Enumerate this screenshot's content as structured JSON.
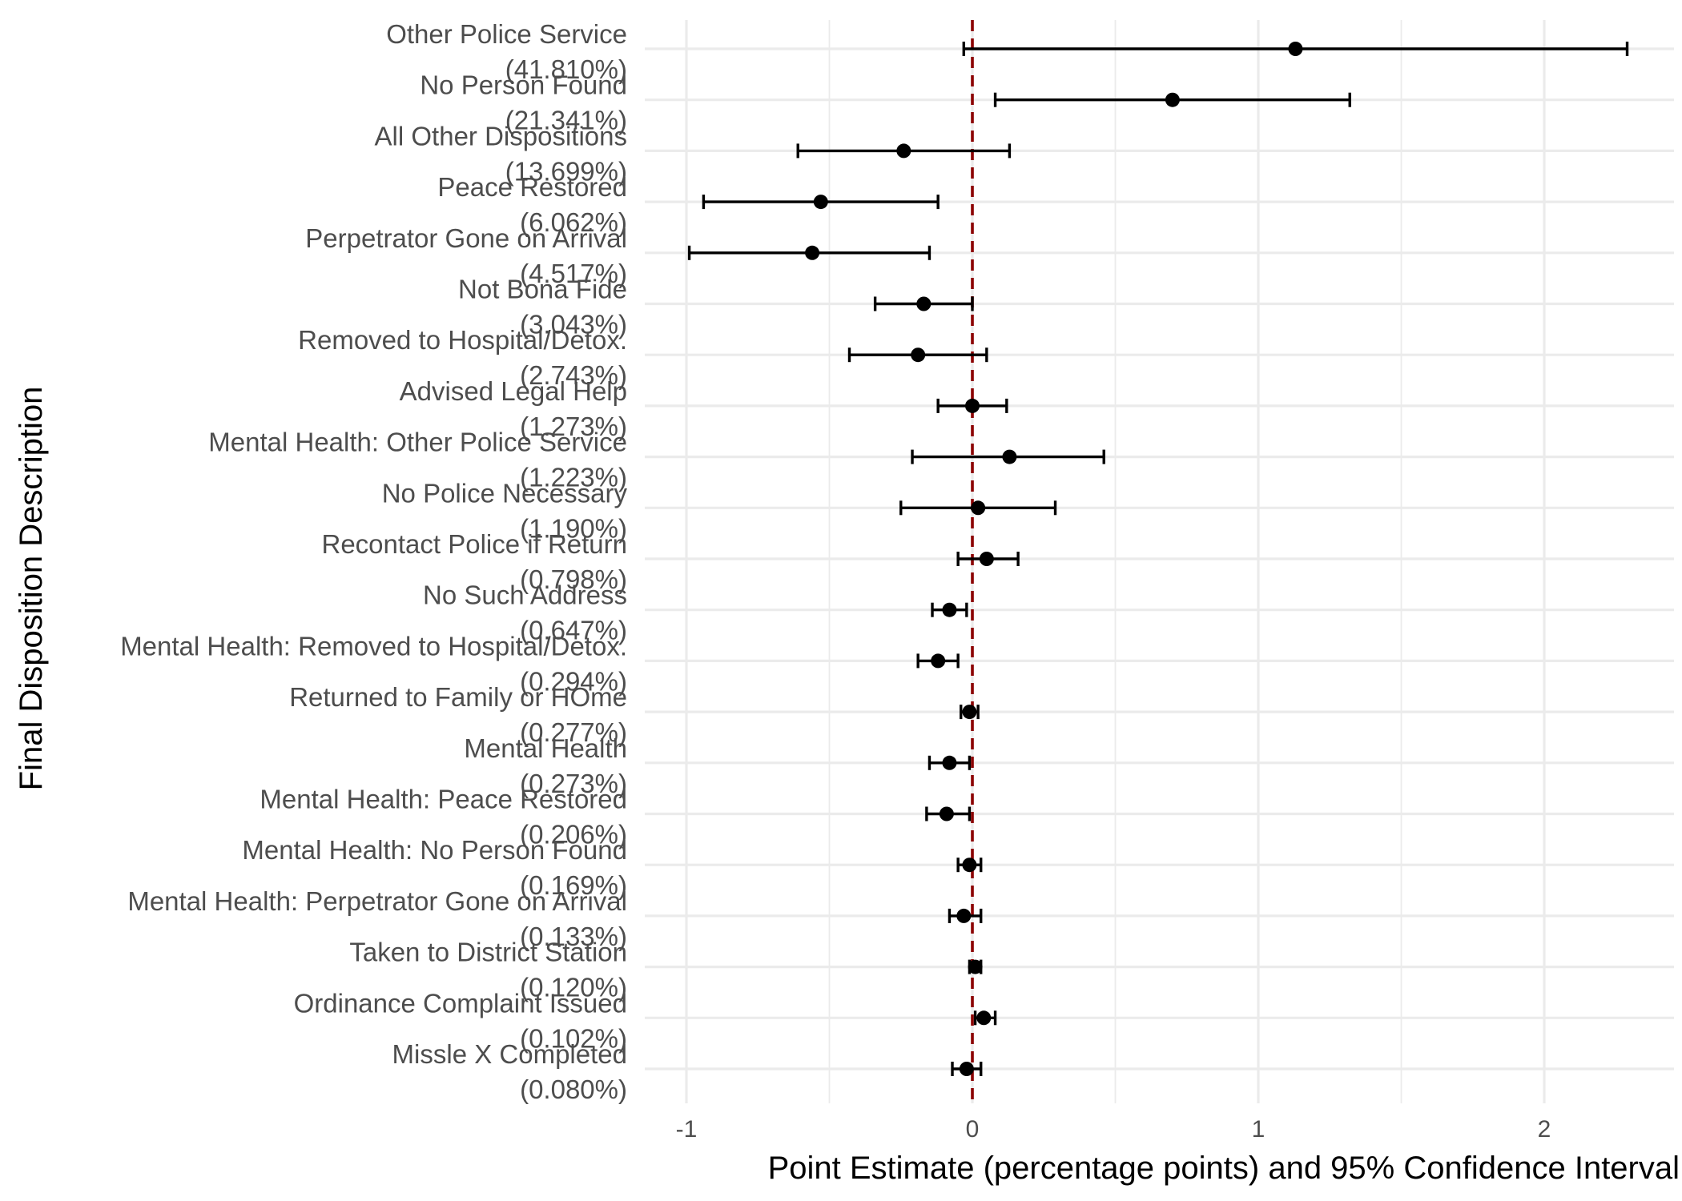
{
  "chart_data": {
    "type": "scatter",
    "subtype": "point-range (dot and whisker)",
    "title": "",
    "xlabel": "Point Estimate (percentage points) and 95% Confidence Interval",
    "ylabel": "Final Disposition Description",
    "xlim": [
      -1.18,
      2.42
    ],
    "x_ticks": [
      -1,
      0,
      1,
      2
    ],
    "x_tick_labels": [
      "-1",
      "0",
      "1",
      "2"
    ],
    "reference_line": {
      "x": 0,
      "style": "dashed",
      "color": "#8b0000"
    },
    "grid": true,
    "legend": "none",
    "colors": {
      "points": "#000000",
      "reference": "#8b0000",
      "grid": "#ebebeb"
    },
    "series": [
      {
        "points": [
          {
            "label": "Other Police Service",
            "share": "(41.810%)",
            "estimate": 1.13,
            "low": -0.03,
            "high": 2.29
          },
          {
            "label": "No Person Found",
            "share": "(21.341%)",
            "estimate": 0.7,
            "low": 0.08,
            "high": 1.32
          },
          {
            "label": "All Other Dispositions",
            "share": "(13.699%)",
            "estimate": -0.24,
            "low": -0.61,
            "high": 0.13
          },
          {
            "label": "Peace Restored",
            "share": "(6.062%)",
            "estimate": -0.53,
            "low": -0.94,
            "high": -0.12
          },
          {
            "label": "Perpetrator Gone on Arrival",
            "share": "(4.517%)",
            "estimate": -0.56,
            "low": -0.99,
            "high": -0.15
          },
          {
            "label": "Not Bona Fide",
            "share": "(3.043%)",
            "estimate": -0.17,
            "low": -0.34,
            "high": 0.0
          },
          {
            "label": "Removed to Hospital/Detox.",
            "share": "(2.743%)",
            "estimate": -0.19,
            "low": -0.43,
            "high": 0.05
          },
          {
            "label": "Advised Legal Help",
            "share": "(1.273%)",
            "estimate": 0.0,
            "low": -0.12,
            "high": 0.12
          },
          {
            "label": "Mental Health: Other Police Service",
            "share": "(1.223%)",
            "estimate": 0.13,
            "low": -0.21,
            "high": 0.46
          },
          {
            "label": "No Police Necessary",
            "share": "(1.190%)",
            "estimate": 0.02,
            "low": -0.25,
            "high": 0.29
          },
          {
            "label": "Recontact Police if Return",
            "share": "(0.798%)",
            "estimate": 0.05,
            "low": -0.05,
            "high": 0.16
          },
          {
            "label": "No Such Address",
            "share": "(0.647%)",
            "estimate": -0.08,
            "low": -0.14,
            "high": -0.02
          },
          {
            "label": "Mental Health: Removed to Hospital/Detox.",
            "share": "(0.294%)",
            "estimate": -0.12,
            "low": -0.19,
            "high": -0.05
          },
          {
            "label": "Returned to Family or HOme",
            "share": "(0.277%)",
            "estimate": -0.01,
            "low": -0.04,
            "high": 0.02
          },
          {
            "label": "Mental Health",
            "share": "(0.273%)",
            "estimate": -0.08,
            "low": -0.15,
            "high": -0.01
          },
          {
            "label": "Mental Health: Peace Restored",
            "share": "(0.206%)",
            "estimate": -0.09,
            "low": -0.16,
            "high": -0.01
          },
          {
            "label": "Mental Health: No Person Found",
            "share": "(0.169%)",
            "estimate": -0.01,
            "low": -0.05,
            "high": 0.03
          },
          {
            "label": "Mental Health: Perpetrator Gone on Arrival",
            "share": "(0.133%)",
            "estimate": -0.03,
            "low": -0.08,
            "high": 0.03
          },
          {
            "label": "Taken to District Station",
            "share": "(0.120%)",
            "estimate": 0.01,
            "low": -0.01,
            "high": 0.03
          },
          {
            "label": "Ordinance Complaint Issued",
            "share": "(0.102%)",
            "estimate": 0.04,
            "low": 0.01,
            "high": 0.08
          },
          {
            "label": "Missle X Completed",
            "share": "(0.080%)",
            "estimate": -0.02,
            "low": -0.07,
            "high": 0.03
          }
        ]
      }
    ]
  }
}
